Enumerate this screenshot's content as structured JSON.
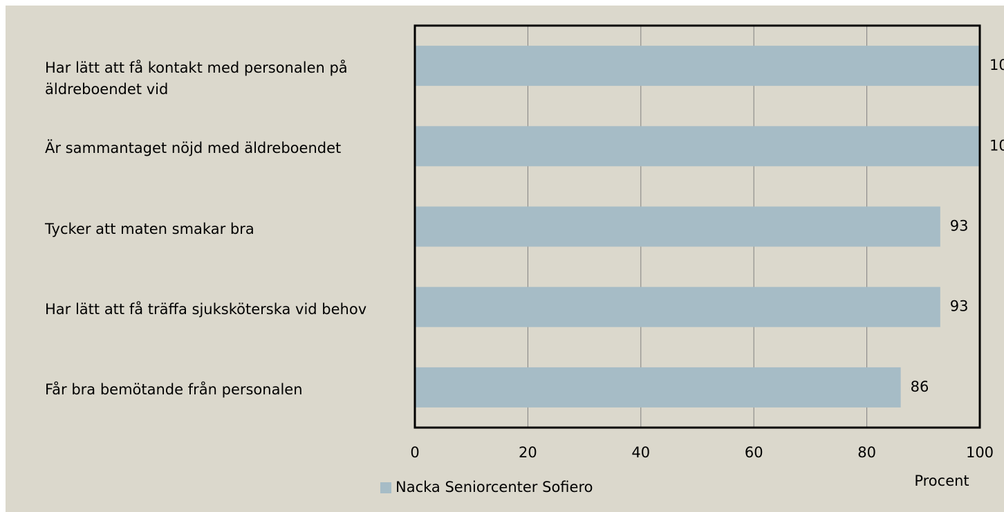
{
  "chart_data": {
    "type": "bar",
    "orientation": "horizontal",
    "categories": [
      "Har lätt att få kontakt med personalen på äldreboendet vid",
      "Är sammantaget nöjd med äldreboendet",
      "Tycker att maten smakar bra",
      "Har lätt att få träffa sjuksköterska vid behov",
      "Får bra bemötande från personalen"
    ],
    "series": [
      {
        "name": "Nacka Seniorcenter Sofiero",
        "color": "#a6bcc6",
        "values": [
          100,
          100,
          93,
          93,
          86
        ]
      }
    ],
    "xlim": [
      0,
      100
    ],
    "xticks": [
      0,
      20,
      40,
      60,
      80,
      100
    ],
    "xlabel": "Procent",
    "grid": true,
    "legend": "bottom"
  }
}
